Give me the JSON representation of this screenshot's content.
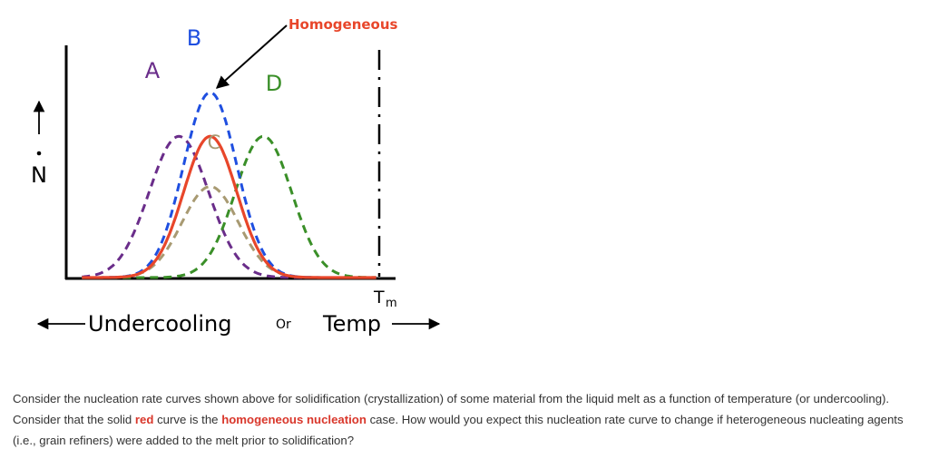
{
  "chart_data": {
    "type": "line",
    "title": "",
    "ylabel": "N",
    "xlabel": {
      "left": "Undercooling",
      "middle": "Or",
      "right": "Temp"
    },
    "x_marker": {
      "label": "T",
      "subscript": "m"
    },
    "annotation": "Homogeneous",
    "x_unit_note": "relative temperature, 0 = left axis, 100 = Tm",
    "series": [
      {
        "name": "A",
        "peak_x": 36,
        "peak_y": 0.9,
        "width": 9.5,
        "color": "#6a2d8a",
        "style": "dashed"
      },
      {
        "name": "B",
        "peak_x": 46,
        "peak_y": 1.18,
        "width": 8.5,
        "color": "#1f4fe0",
        "style": "dashed"
      },
      {
        "name": "C",
        "peak_x": 46,
        "peak_y": 0.58,
        "width": 9,
        "color": "#a89a72",
        "style": "dashed"
      },
      {
        "name": "D",
        "peak_x": 63,
        "peak_y": 0.9,
        "width": 9,
        "color": "#3a8f28",
        "style": "dashed"
      },
      {
        "name": "",
        "peak_x": 46,
        "peak_y": 0.9,
        "width": 8.5,
        "color": "#e8462a",
        "style": "solid"
      }
    ]
  },
  "question": {
    "part1": "Consider the nucleation rate curves shown above for solidification (crystallization) of some material from the liquid melt as a function of temperature (or undercooling). Consider that the solid ",
    "red_word": "red",
    "part2": " curve is the ",
    "homogeneous_phrase": "homogeneous nucleation",
    "part3": " case. How would you expect this nucleation rate curve to change if heterogeneous nucleating agents (i.e., grain refiners) were added to the melt prior to solidification?"
  }
}
